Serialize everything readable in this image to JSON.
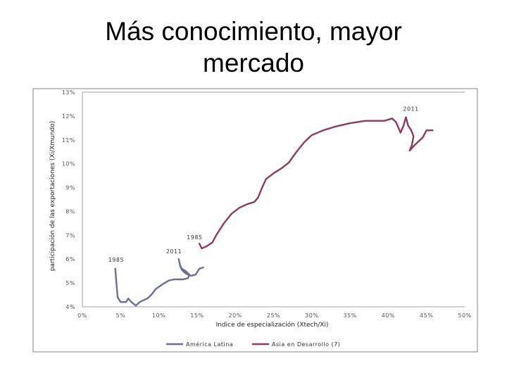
{
  "slide": {
    "title_line1": "Más conocimiento, mayor",
    "title_line2": "mercado"
  },
  "chart_data": {
    "type": "line",
    "title": "Más conocimiento, mayor mercado",
    "xlabel": "Indice de especialización (Xtech/Xi)",
    "ylabel": "participación de las exportaciones (Xi/Xmundo)",
    "xlim": [
      0,
      50
    ],
    "ylim": [
      4,
      13
    ],
    "x_ticks": [
      "0%",
      "5%",
      "10%",
      "15%",
      "20%",
      "25%",
      "30%",
      "35%",
      "40%",
      "45%",
      "50%"
    ],
    "y_ticks": [
      "4%",
      "5%",
      "6%",
      "7%",
      "8%",
      "9%",
      "10%",
      "11%",
      "12%",
      "13%"
    ],
    "grid": "top line only",
    "legend_position": "bottom",
    "colors": {
      "america_latina": "#6a6f94",
      "asia": "#8e3a63"
    },
    "series": [
      {
        "name": "América Latina",
        "start_label": "1985",
        "end_label": "2011",
        "points": [
          [
            4.3,
            5.6
          ],
          [
            4.6,
            4.4
          ],
          [
            5.0,
            4.2
          ],
          [
            5.7,
            4.2
          ],
          [
            6.0,
            4.35
          ],
          [
            6.4,
            4.2
          ],
          [
            7.0,
            4.05
          ],
          [
            7.5,
            4.2
          ],
          [
            8.5,
            4.35
          ],
          [
            9.0,
            4.5
          ],
          [
            9.6,
            4.75
          ],
          [
            10.5,
            4.95
          ],
          [
            11.3,
            5.1
          ],
          [
            12.0,
            5.15
          ],
          [
            12.6,
            5.15
          ],
          [
            13.2,
            5.15
          ],
          [
            13.8,
            5.2
          ],
          [
            14.0,
            5.35
          ],
          [
            13.5,
            5.5
          ],
          [
            13.0,
            5.6
          ],
          [
            12.8,
            5.72
          ],
          [
            12.7,
            5.85
          ],
          [
            12.6,
            6.0
          ],
          [
            12.8,
            5.7
          ],
          [
            13.0,
            5.55
          ],
          [
            13.5,
            5.4
          ],
          [
            14.2,
            5.3
          ],
          [
            14.8,
            5.35
          ],
          [
            15.3,
            5.6
          ],
          [
            15.8,
            5.65
          ]
        ]
      },
      {
        "name": "Asia en Desarrollo (7)",
        "start_label": "1985",
        "end_label": "2011",
        "points": [
          [
            15.3,
            6.65
          ],
          [
            15.6,
            6.45
          ],
          [
            16.3,
            6.55
          ],
          [
            17.0,
            6.7
          ],
          [
            17.5,
            7.0
          ],
          [
            18.5,
            7.5
          ],
          [
            19.5,
            7.9
          ],
          [
            20.5,
            8.15
          ],
          [
            21.5,
            8.3
          ],
          [
            22.5,
            8.4
          ],
          [
            23.0,
            8.6
          ],
          [
            23.5,
            9.0
          ],
          [
            24.0,
            9.35
          ],
          [
            25.0,
            9.6
          ],
          [
            26.0,
            9.8
          ],
          [
            27.0,
            10.05
          ],
          [
            28.0,
            10.5
          ],
          [
            29.0,
            10.9
          ],
          [
            30.0,
            11.2
          ],
          [
            31.5,
            11.4
          ],
          [
            33.0,
            11.55
          ],
          [
            35.0,
            11.7
          ],
          [
            37.0,
            11.8
          ],
          [
            38.5,
            11.8
          ],
          [
            39.5,
            11.8
          ],
          [
            40.5,
            11.9
          ],
          [
            41.0,
            11.75
          ],
          [
            41.6,
            11.3
          ],
          [
            42.0,
            11.6
          ],
          [
            42.3,
            11.95
          ],
          [
            42.6,
            11.6
          ],
          [
            43.0,
            11.4
          ],
          [
            43.3,
            11.15
          ],
          [
            43.1,
            10.8
          ],
          [
            42.8,
            10.55
          ],
          [
            43.5,
            10.8
          ],
          [
            44.5,
            11.1
          ],
          [
            45.0,
            11.4
          ],
          [
            45.8,
            11.4
          ]
        ]
      }
    ]
  }
}
